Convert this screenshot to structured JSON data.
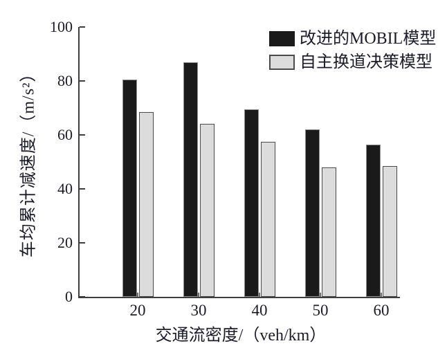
{
  "chart_data": {
    "type": "bar",
    "title": "",
    "categories": [
      "20",
      "30",
      "40",
      "50",
      "60"
    ],
    "series": [
      {
        "name": "改进的MOBIL模型",
        "values": [
          80.5,
          87,
          69.5,
          62,
          56.5
        ],
        "fill": "#1a1a1a",
        "border": "#8f8f8f"
      },
      {
        "name": "自主换道决策模型",
        "values": [
          68.5,
          64,
          57.5,
          48,
          48.5
        ],
        "fill": "#dcdcdc",
        "border": "#4a4a4a"
      }
    ],
    "xlabel": "交通流密度/（veh/km）",
    "ylabel": "车均累计减速度/（m/s²）",
    "ylim": [
      0,
      100
    ],
    "yticks": [
      0,
      20,
      40,
      60,
      80,
      100
    ],
    "grid": false,
    "legend_position": "top-right",
    "axis_color": "#3d3d3d",
    "text_color": "#1b1b2a"
  }
}
